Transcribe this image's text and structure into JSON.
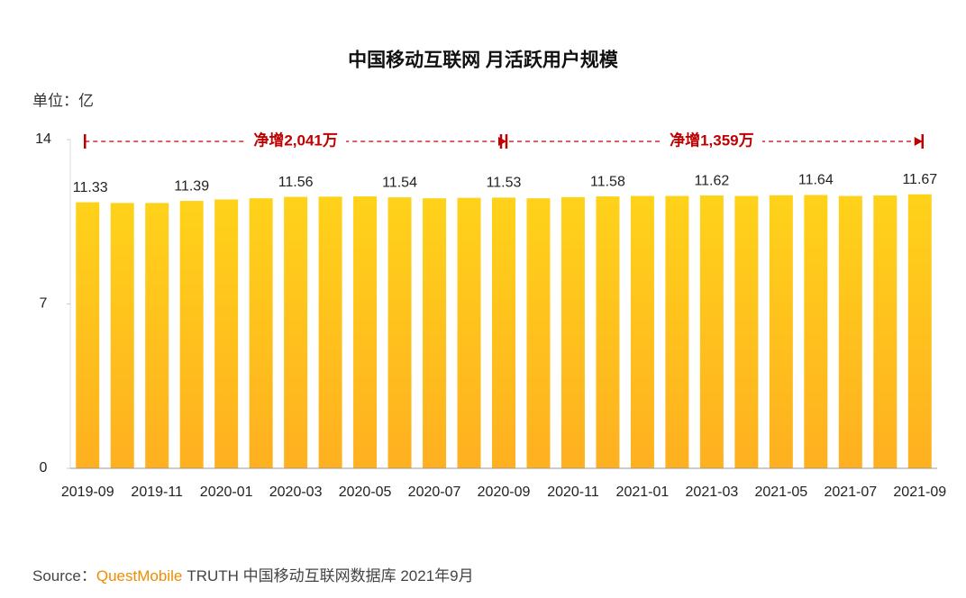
{
  "chart_data": {
    "type": "bar",
    "title": "中国移动互联网 月活跃用户规模",
    "unit_label": "单位：亿",
    "categories": [
      "2019-09",
      null,
      "2019-11",
      null,
      "2020-01",
      null,
      "2020-03",
      null,
      "2020-05",
      null,
      "2020-07",
      null,
      "2020-09",
      null,
      "2020-11",
      null,
      "2021-01",
      null,
      "2021-03",
      null,
      "2021-05",
      null,
      "2021-07",
      null,
      "2021-09"
    ],
    "values": [
      11.33,
      11.3,
      11.3,
      11.39,
      11.45,
      11.5,
      11.56,
      11.57,
      11.58,
      11.54,
      11.5,
      11.52,
      11.53,
      11.5,
      11.55,
      11.58,
      11.6,
      11.6,
      11.62,
      11.6,
      11.63,
      11.64,
      11.6,
      11.62,
      11.67
    ],
    "value_labels": [
      "11.33",
      null,
      null,
      "11.39",
      null,
      null,
      "11.56",
      null,
      null,
      "11.54",
      null,
      null,
      "11.53",
      null,
      null,
      "11.58",
      null,
      null,
      "11.62",
      null,
      null,
      "11.64",
      null,
      null,
      "11.67"
    ],
    "colors": [
      "#ffd21a",
      "#ffb020"
    ],
    "ylim": [
      0,
      14
    ],
    "yticks": [
      0,
      7,
      14
    ],
    "grid": false,
    "annotations": [
      {
        "text": "净增2,041万",
        "from": "2019-09",
        "to": "2020-09",
        "color": "#c00000"
      },
      {
        "text": "净增1,359万",
        "from": "2020-09",
        "to": "2021-09",
        "color": "#c00000"
      }
    ],
    "source": {
      "prefix": "Source：",
      "brand": "QuestMobile",
      "rest": "TRUTH 中国移动互联网数据库 2021年9月"
    }
  }
}
